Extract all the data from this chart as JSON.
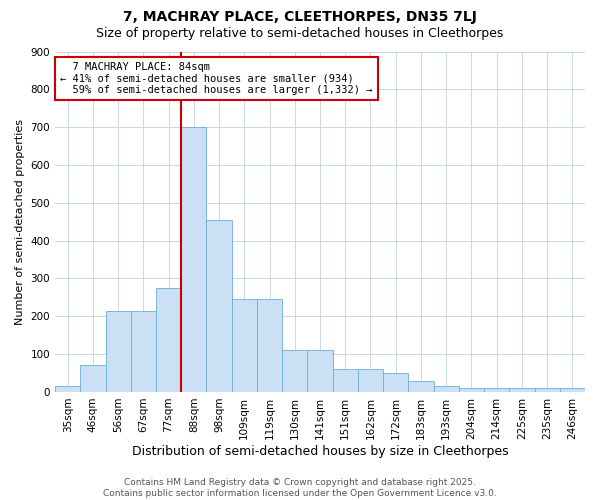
{
  "title": "7, MACHRAY PLACE, CLEETHORPES, DN35 7LJ",
  "subtitle": "Size of property relative to semi-detached houses in Cleethorpes",
  "xlabel": "Distribution of semi-detached houses by size in Cleethorpes",
  "ylabel": "Number of semi-detached properties",
  "footer_line1": "Contains HM Land Registry data © Crown copyright and database right 2025.",
  "footer_line2": "Contains public sector information licensed under the Open Government Licence v3.0.",
  "property_label": "7 MACHRAY PLACE: 84sqm",
  "pct_smaller": 41,
  "pct_larger": 59,
  "count_smaller": 934,
  "count_larger": 1332,
  "categories": [
    "35sqm",
    "46sqm",
    "56sqm",
    "67sqm",
    "77sqm",
    "88sqm",
    "98sqm",
    "109sqm",
    "119sqm",
    "130sqm",
    "141sqm",
    "151sqm",
    "162sqm",
    "172sqm",
    "183sqm",
    "193sqm",
    "204sqm",
    "214sqm",
    "225sqm",
    "235sqm",
    "246sqm"
  ],
  "values": [
    15,
    70,
    215,
    215,
    275,
    700,
    455,
    245,
    245,
    110,
    110,
    60,
    60,
    50,
    30,
    15,
    10,
    10,
    10,
    10,
    10
  ],
  "vline_bin_idx": 5,
  "bar_color": "#cce0f5",
  "bar_edge_color": "#6baed6",
  "vline_color": "#cc0000",
  "annotation_box_color": "#cc0000",
  "background_color": "#ffffff",
  "grid_color": "#c8d8e8",
  "ylim": [
    0,
    900
  ],
  "yticks": [
    0,
    100,
    200,
    300,
    400,
    500,
    600,
    700,
    800,
    900
  ],
  "title_fontsize": 10,
  "subtitle_fontsize": 9,
  "xlabel_fontsize": 9,
  "ylabel_fontsize": 8,
  "tick_fontsize": 7.5,
  "annotation_fontsize": 7.5,
  "footer_fontsize": 6.5
}
